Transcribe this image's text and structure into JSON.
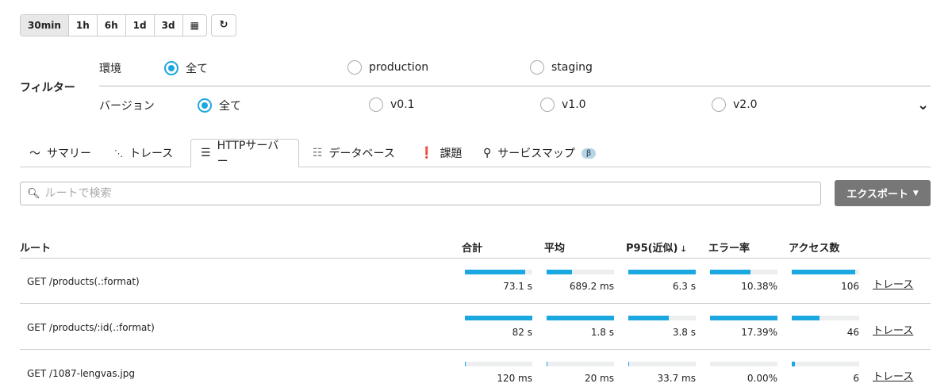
{
  "time_range": {
    "options": [
      "30min",
      "1h",
      "6h",
      "1d",
      "3d"
    ],
    "selected": "30min",
    "calendar_icon": "calendar-icon",
    "refresh_icon": "refresh-icon"
  },
  "filter": {
    "title": "フィルター",
    "environment": {
      "label": "環境",
      "options": [
        "全て",
        "production",
        "staging"
      ],
      "selected": 0
    },
    "version": {
      "label": "バージョン",
      "options": [
        "全て",
        "v0.1",
        "v1.0",
        "v2.0"
      ],
      "selected": 0
    }
  },
  "tabs": [
    {
      "label": "サマリー",
      "icon": "chart-line-icon"
    },
    {
      "label": "トレース",
      "icon": "trace-icon"
    },
    {
      "label": "HTTPサーバー",
      "icon": "server-icon",
      "active": true
    },
    {
      "label": "データベース",
      "icon": "database-icon"
    },
    {
      "label": "課題",
      "icon": "exclamation-icon"
    },
    {
      "label": "サービスマップ",
      "icon": "service-map-icon",
      "badge": "β"
    }
  ],
  "search": {
    "placeholder": "ルートで検索",
    "value": ""
  },
  "export_label": "エクスポート",
  "table": {
    "headers": [
      "ルート",
      "合計",
      "平均",
      "P95(近似)",
      "エラー率",
      "アクセス数"
    ],
    "sort_column": "P95(近似)",
    "sort_dir": "desc",
    "rows": [
      {
        "route": "GET /products(.:format)",
        "values": [
          "73.1 s",
          "689.2 ms",
          "6.3 s",
          "10.38%",
          "106"
        ],
        "fill": [
          0.89,
          0.38,
          1.0,
          0.6,
          0.94
        ],
        "link": "トレース"
      },
      {
        "route": "GET /products/:id(.:format)",
        "values": [
          "82 s",
          "1.8 s",
          "3.8 s",
          "17.39%",
          "46"
        ],
        "fill": [
          1.0,
          1.0,
          0.6,
          1.0,
          0.41
        ],
        "link": "トレース"
      },
      {
        "route": "GET /1087-lengvas.jpg",
        "values": [
          "120 ms",
          "20 ms",
          "33.7 ms",
          "0.00%",
          "6"
        ],
        "fill": [
          0.005,
          0.01,
          0.01,
          0,
          0.05
        ],
        "link": "トレース"
      }
    ]
  },
  "accent": "#1ba8e0"
}
